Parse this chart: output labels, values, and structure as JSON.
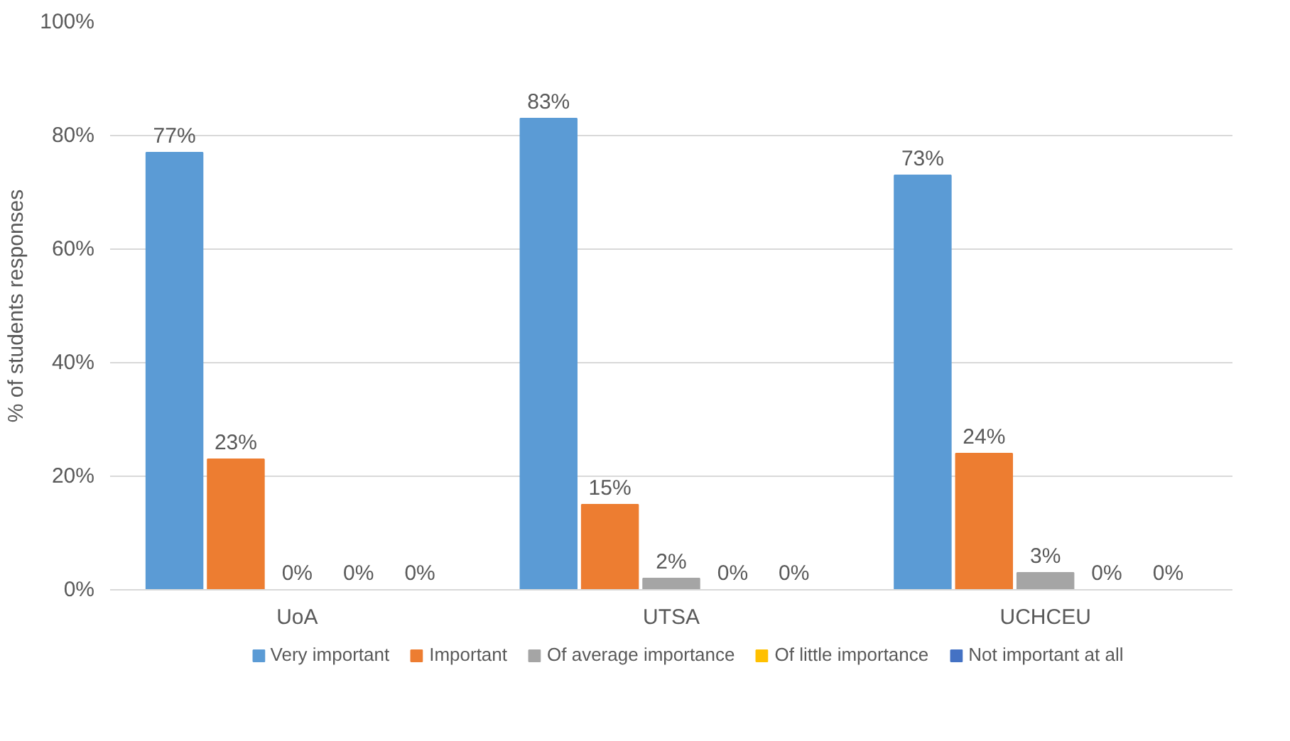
{
  "chart_data": {
    "type": "bar",
    "ylabel": "% of students responses",
    "categories": [
      "UoA",
      "UTSA",
      "UCHCEU"
    ],
    "series": [
      {
        "name": "Very important",
        "color": "#5b9bd5",
        "values": [
          77,
          83,
          73
        ],
        "value_labels": [
          "77%",
          "83%",
          "73%"
        ]
      },
      {
        "name": "Important",
        "color": "#ed7d31",
        "values": [
          23,
          15,
          24
        ],
        "value_labels": [
          "23%",
          "15%",
          "24%"
        ]
      },
      {
        "name": "Of average importance",
        "color": "#a5a5a5",
        "values": [
          0,
          2,
          3
        ],
        "value_labels": [
          "0%",
          "2%",
          "3%"
        ]
      },
      {
        "name": "Of little importance",
        "color": "#ffc000",
        "values": [
          0,
          0,
          0
        ],
        "value_labels": [
          "0%",
          "0%",
          "0%"
        ]
      },
      {
        "name": "Not important at all",
        "color": "#4472c4",
        "values": [
          0,
          0,
          0
        ],
        "value_labels": [
          "0%",
          "0%",
          "0%"
        ]
      }
    ],
    "ylim": [
      0,
      100
    ],
    "yticks": [
      {
        "value": 0,
        "label": "0%"
      },
      {
        "value": 20,
        "label": "20%"
      },
      {
        "value": 40,
        "label": "40%"
      },
      {
        "value": 60,
        "label": "60%"
      },
      {
        "value": 80,
        "label": "80%"
      },
      {
        "value": 100,
        "label": "100%"
      }
    ],
    "grid": "y",
    "legend": "bottom"
  }
}
